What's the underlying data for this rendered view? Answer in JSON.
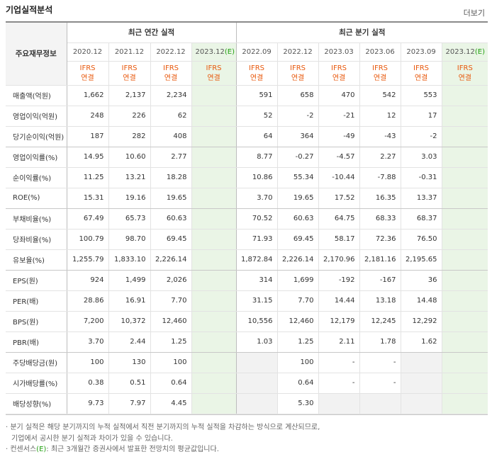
{
  "title": "기업실적분석",
  "more_label": "더보기",
  "header": {
    "row_label": "주요재무정보",
    "annual_title": "최근 연간 실적",
    "quarter_title": "최근 분기 실적",
    "annual_periods": [
      "2020.12",
      "2021.12",
      "2022.12",
      "2023.12"
    ],
    "annual_estimate_suffix": "(E)",
    "quarter_periods": [
      "2022.09",
      "2022.12",
      "2023.03",
      "2023.06",
      "2023.09",
      "2023.12"
    ],
    "quarter_estimate_suffix": "(E)",
    "basis_line1": "IFRS",
    "basis_line2": "연결"
  },
  "rows": [
    {
      "label": "매출액(억원)",
      "annual": [
        "1,662",
        "2,137",
        "2,234",
        ""
      ],
      "quarter": [
        "591",
        "658",
        "470",
        "542",
        "553",
        ""
      ]
    },
    {
      "label": "영업이익(억원)",
      "annual": [
        "248",
        "226",
        "62",
        ""
      ],
      "quarter": [
        "52",
        "-2",
        "-21",
        "12",
        "17",
        ""
      ]
    },
    {
      "label": "당기순이익(억원)",
      "annual": [
        "187",
        "282",
        "408",
        ""
      ],
      "quarter": [
        "64",
        "364",
        "-49",
        "-43",
        "-2",
        ""
      ]
    },
    {
      "label": "영업이익률(%)",
      "annual": [
        "14.95",
        "10.60",
        "2.77",
        ""
      ],
      "quarter": [
        "8.77",
        "-0.27",
        "-4.57",
        "2.27",
        "3.03",
        ""
      ]
    },
    {
      "label": "순이익률(%)",
      "annual": [
        "11.25",
        "13.21",
        "18.28",
        ""
      ],
      "quarter": [
        "10.86",
        "55.34",
        "-10.44",
        "-7.88",
        "-0.31",
        ""
      ]
    },
    {
      "label": "ROE(%)",
      "annual": [
        "15.31",
        "19.16",
        "19.65",
        ""
      ],
      "quarter": [
        "3.70",
        "19.65",
        "17.52",
        "16.35",
        "13.37",
        ""
      ]
    },
    {
      "label": "부채비율(%)",
      "annual": [
        "67.49",
        "65.73",
        "60.63",
        ""
      ],
      "quarter": [
        "70.52",
        "60.63",
        "64.75",
        "68.33",
        "68.37",
        ""
      ]
    },
    {
      "label": "당좌비율(%)",
      "annual": [
        "100.79",
        "98.70",
        "69.45",
        ""
      ],
      "quarter": [
        "71.93",
        "69.45",
        "58.17",
        "72.36",
        "76.50",
        ""
      ]
    },
    {
      "label": "유보율(%)",
      "annual": [
        "1,255.79",
        "1,833.10",
        "2,226.14",
        ""
      ],
      "quarter": [
        "1,872.84",
        "2,226.14",
        "2,170.96",
        "2,181.16",
        "2,195.65",
        ""
      ]
    },
    {
      "label": "EPS(원)",
      "annual": [
        "924",
        "1,499",
        "2,026",
        ""
      ],
      "quarter": [
        "314",
        "1,699",
        "-192",
        "-167",
        "36",
        ""
      ]
    },
    {
      "label": "PER(배)",
      "annual": [
        "28.86",
        "16.91",
        "7.70",
        ""
      ],
      "quarter": [
        "31.15",
        "7.70",
        "14.44",
        "13.18",
        "14.48",
        ""
      ]
    },
    {
      "label": "BPS(원)",
      "annual": [
        "7,200",
        "10,372",
        "12,460",
        ""
      ],
      "quarter": [
        "10,556",
        "12,460",
        "12,179",
        "12,245",
        "12,292",
        ""
      ]
    },
    {
      "label": "PBR(배)",
      "annual": [
        "3.70",
        "2.44",
        "1.25",
        ""
      ],
      "quarter": [
        "1.03",
        "1.25",
        "2.11",
        "1.78",
        "1.62",
        ""
      ]
    },
    {
      "label": "주당배당금(원)",
      "annual": [
        "100",
        "130",
        "100",
        ""
      ],
      "quarter": [
        null,
        "100",
        "-",
        "-",
        null,
        ""
      ]
    },
    {
      "label": "시가배당률(%)",
      "annual": [
        "0.38",
        "0.51",
        "0.64",
        ""
      ],
      "quarter": [
        null,
        "0.64",
        "-",
        "-",
        null,
        ""
      ]
    },
    {
      "label": "배당성향(%)",
      "annual": [
        "9.73",
        "7.97",
        "4.45",
        ""
      ],
      "quarter": [
        null,
        "5.30",
        null,
        null,
        null,
        ""
      ]
    }
  ],
  "notes": {
    "line1": "· 분기 실적은 해당 분기까지의 누적 실적에서 직전 분기까지의 누적 실적을 차감하는 방식으로 계산되므로,",
    "line2": "기업에서 공시한 분기 실적과 차이가 있을 수 있습니다.",
    "line3_prefix": "· 컨센서스",
    "line3_mark": "(E)",
    "line3_suffix": ": 최근 3개월간 증권사에서 발표한 전망치의 평균값입니다."
  },
  "colors": {
    "negative": "#e81e1e",
    "basis": "#e8580c",
    "estimate_bg": "#eaf5e6",
    "empty_bg": "#f2f2f2"
  }
}
